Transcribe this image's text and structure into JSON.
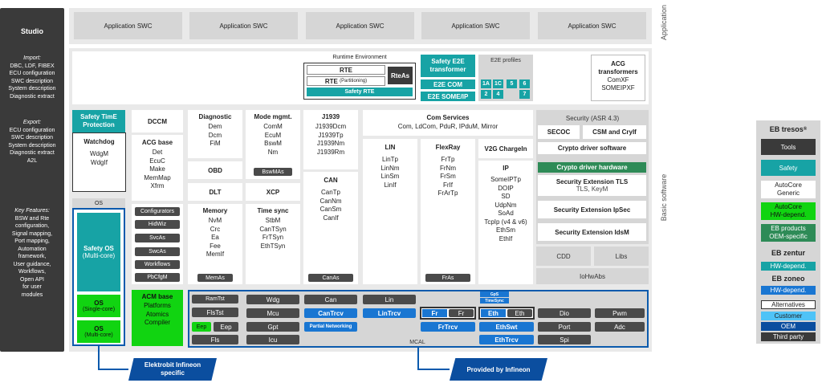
{
  "studio": {
    "title": "Studio",
    "import_heading": "Import:",
    "import_items": [
      "DBC, LDF, FIBEX",
      "ECU configuration",
      "SWC description",
      "System description",
      "Diagnostic extract"
    ],
    "export_heading": "Export:",
    "export_items": [
      "ECU configuration",
      "SWC description",
      "System description",
      "Diagnostic extract",
      "A2L"
    ],
    "features_heading": "Key Features:",
    "features_items": [
      "BSW and Rte",
      "configuration,",
      "Signal mapping,",
      "Port mapping,",
      "Automation",
      "framework,",
      "User guidance,",
      "Workflows,",
      "Open API",
      "for user",
      "modules"
    ]
  },
  "side_labels": {
    "application": "Application",
    "basic_software": "Basic  software"
  },
  "app_swc": [
    "Application SWC",
    "Application SWC",
    "Application SWC",
    "Application SWC",
    "Application SWC"
  ],
  "rte": {
    "runtime_env": "Runtime Environment",
    "rte": "RTE",
    "rte_part_main": "RTE",
    "rte_part_sub": "(Partitioning)",
    "rteas": "RteAs",
    "safety_rte": "Safety RTE",
    "safety_e2e": "Safety E2E transformer",
    "e2e_com": "E2E COM",
    "e2e_someip": "E2E SOME/IP",
    "e2e_profiles": "E2E profiles",
    "profiles": [
      "1A",
      "1C",
      "5",
      "6",
      "2",
      "4",
      "7"
    ],
    "acg_title": "ACG transformers",
    "acg_items": [
      "ComXF",
      "SOMEIPXF"
    ]
  },
  "safety_time": "Safety TimE Protection",
  "watchdog": {
    "title": "Watchdog",
    "items": [
      "WdgM",
      "WdgIf"
    ]
  },
  "os": {
    "label": "OS",
    "safety_os": "Safety OS",
    "safety_os_sub": "(Multi-core)",
    "os_single": "OS",
    "os_single_sub": "(Single-core)",
    "os_multi": "OS",
    "os_multi_sub": "(Multi-core)"
  },
  "dccm": "DCCM",
  "acg_base": {
    "title": "ACG base",
    "items": [
      "Det",
      "EcuC",
      "Make",
      "MemMap",
      "Xfrm"
    ]
  },
  "config_chips": [
    "Configurators",
    "HidWiz",
    "SvcAs",
    "SwcAs",
    "Workflows",
    "PbCfgM"
  ],
  "acm_base": {
    "title": "ACM base",
    "items": [
      "Platforms",
      "Atomics",
      "Compiler"
    ]
  },
  "diagnostic": {
    "title": "Diagnostic",
    "items": [
      "Dem",
      "Dcm",
      "FiM"
    ]
  },
  "obd": "OBD",
  "dlt": "DLT",
  "memory": {
    "title": "Memory",
    "items": [
      "NvM",
      "Crc",
      "Ea",
      "Fee",
      "MemIf"
    ],
    "chip": "MemAs"
  },
  "mode": {
    "title": "Mode mgmt.",
    "items": [
      "ComM",
      "EcuM",
      "BswM",
      "Nm"
    ],
    "chip": "BswMAs"
  },
  "xcp": "XCP",
  "timesync": {
    "title": "Time sync",
    "items": [
      "StbM",
      "CanTSyn",
      "FrTSyn",
      "EthTSyn"
    ]
  },
  "j1939": {
    "title": "J1939",
    "items": [
      "J1939Dcm",
      "J1939Tp",
      "J1939Nm",
      "J1939Rm"
    ]
  },
  "can": {
    "title": "CAN",
    "items": [
      "CanTp",
      "CanNm",
      "CanSm",
      "CanIf"
    ],
    "chip": "CanAs"
  },
  "com": {
    "title": "Com Services",
    "items": "Com, LdCom, PduR, IPduM, Mirror"
  },
  "lin": {
    "title": "LIN",
    "items": [
      "LinTp",
      "LinNm",
      "LinSm",
      "LinIf"
    ]
  },
  "flexray": {
    "title": "FlexRay",
    "items": [
      "FrTp",
      "FrNm",
      "FrSm",
      "FrIf",
      "FrArTp"
    ],
    "chip": "FrAs"
  },
  "v2g": "V2G ChargeIn",
  "ip": {
    "title": "IP",
    "items": [
      "SomeIPTp",
      "DOIP",
      "SD",
      "UdpNm",
      "SoAd",
      "TcpIp (v4 & v6)",
      "EthSm",
      "EthIf"
    ]
  },
  "security": {
    "title": "Security (ASR 4.3)",
    "secoc": "SECOC",
    "csm": "CSM and CryIf",
    "crypto_sw": "Crypto driver software",
    "crypto_hw": "Crypto driver hardware",
    "tls_title": "Security Extension TLS",
    "tls_sub": "TLS, KeyM",
    "ipsec": "Security Extension IpSec",
    "idsm": "Security Extension IdsM"
  },
  "cdd": "CDD",
  "libs": "Libs",
  "iohwabs": "IoHwAbs",
  "mcal": {
    "label": "MCAL",
    "col1": [
      "RamTst",
      "FlsTst",
      "Eep",
      "Eep",
      "Fls"
    ],
    "col2": [
      "Wdg",
      "Mcu",
      "Gpt",
      "Icu"
    ],
    "can": "Can",
    "cantrcv": "CanTrcv",
    "partial": "Partial Networking",
    "lin": "Lin",
    "lintrcv": "LinTrcv",
    "fr1": "Fr",
    "fr2": "Fr",
    "frtrcv": "FrTrcv",
    "gps": "GpS",
    "timesync": "TimeSync",
    "eth1": "Eth",
    "eth2": "Eth",
    "ethswt": "EthSwt",
    "ethtrcv": "EthTrcv",
    "col7": [
      "Dio",
      "Port",
      "Spi"
    ],
    "col8": [
      "Pwm",
      "Adc"
    ]
  },
  "callouts": {
    "elektrobit": "Elektrobit Infineon specific",
    "provided": "Provided by Infineon"
  },
  "legend": {
    "title": "EB tresos",
    "reg": "®",
    "tools": "Tools",
    "safety": "Safety",
    "autocore": "AutoCore Generic",
    "autocore_hw": "AutoCore HW-depend.",
    "eb_products": "EB products OEM-specific",
    "zentur": "EB zentur",
    "zentur_hw": "HW-depend.",
    "zoneo": "EB zoneo",
    "zoneo_hw": "HW-depend.",
    "alternatives": "Alternatives",
    "customer": "Customer",
    "oem": "OEM",
    "third_party": "Third party"
  }
}
